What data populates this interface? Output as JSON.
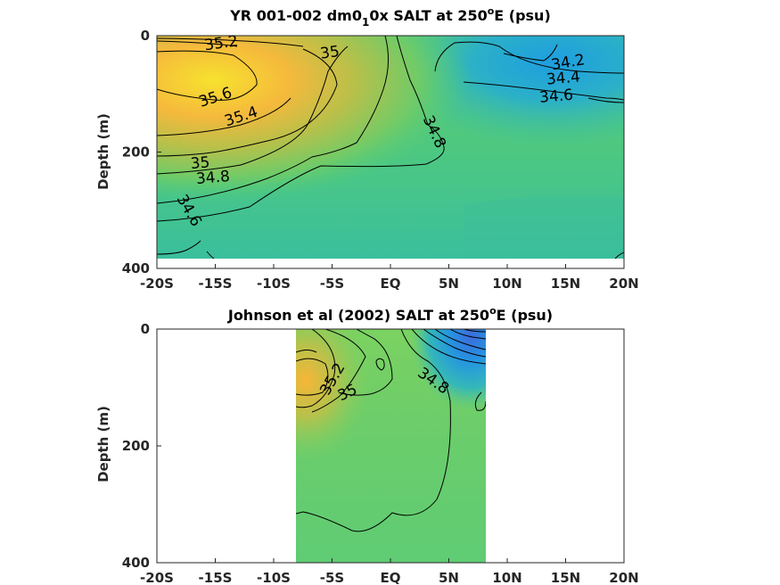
{
  "chart_data": [
    {
      "type": "heatmap",
      "title_pre": "YR 001-002 dm0",
      "title_sub": "1",
      "title_mid": "0x SALT at 250",
      "title_sup": "o",
      "title_post": "E (psu)",
      "ylabel": "Depth (m)",
      "xlim": [
        -20,
        20
      ],
      "ylim": [
        400,
        0
      ],
      "x_ticks": [
        -20,
        -15,
        -10,
        -5,
        0,
        5,
        10,
        15,
        20
      ],
      "x_tick_labels": [
        "-20S",
        "-15S",
        "-10S",
        "-5S",
        "EQ",
        "5N",
        "10N",
        "15N",
        "20N"
      ],
      "y_ticks": [
        0,
        200,
        400
      ],
      "y_tick_labels": [
        "0",
        "200",
        "400"
      ],
      "data_x_range": [
        -20,
        20
      ],
      "data_depth_range": [
        0,
        380
      ],
      "contour_labels": [
        {
          "text": "35.2",
          "x": -14.5,
          "y": 12
        },
        {
          "text": "35",
          "x": -5.2,
          "y": 28
        },
        {
          "text": "35.6",
          "x": -15,
          "y": 105
        },
        {
          "text": "35.4",
          "x": -12.8,
          "y": 138
        },
        {
          "text": "35",
          "x": -16.3,
          "y": 218
        },
        {
          "text": "34.8",
          "x": -15.2,
          "y": 243
        },
        {
          "text": "34.6",
          "x": -17.2,
          "y": 300
        },
        {
          "text": "34.8",
          "x": 3.8,
          "y": 165
        },
        {
          "text": "34.2",
          "x": 15.2,
          "y": 45
        },
        {
          "text": "34.4",
          "x": 14.8,
          "y": 72
        },
        {
          "text": "34.6",
          "x": 14.2,
          "y": 103
        }
      ]
    },
    {
      "type": "heatmap",
      "title_pre": "Johnson et al (2002) SALT at 250",
      "title_sup": "o",
      "title_post": "E (psu)",
      "ylabel": "Depth (m)",
      "xlim": [
        -20,
        20
      ],
      "ylim": [
        400,
        0
      ],
      "x_ticks": [
        -20,
        -15,
        -10,
        -5,
        0,
        5,
        10,
        15,
        20
      ],
      "x_tick_labels": [
        "-20S",
        "-15S",
        "-10S",
        "-5S",
        "EQ",
        "5N",
        "10N",
        "15N",
        "20N"
      ],
      "y_ticks": [
        0,
        200,
        400
      ],
      "y_tick_labels": [
        "0",
        "200",
        "400"
      ],
      "data_x_range": [
        -8,
        8.3
      ],
      "data_depth_range": [
        0,
        400
      ],
      "contour_labels": [
        {
          "text": "35.2",
          "x": -5,
          "y": 85
        },
        {
          "text": "35",
          "x": -3.7,
          "y": 108
        },
        {
          "text": "34.8",
          "x": 3.7,
          "y": 88
        }
      ]
    }
  ]
}
